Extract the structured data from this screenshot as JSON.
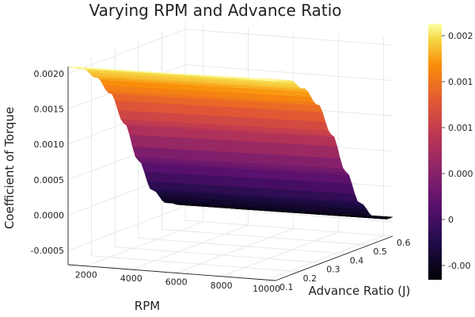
{
  "chart_data": {
    "type": "surface",
    "title": "Varying RPM and Advance Ratio",
    "xlabel": "RPM",
    "ylabel": "Advance Ratio (J)",
    "zlabel": "Coefficient of Torque",
    "x_ticks": [
      "2000",
      "4000",
      "6000",
      "8000",
      "10000"
    ],
    "y_ticks": [
      "0.1",
      "0.2",
      "0.3",
      "0.4",
      "0.5",
      "0.6"
    ],
    "z_ticks": [
      "-0.0005",
      "0.0000",
      "0.0005",
      "0.0010",
      "0.0015",
      "0.0020"
    ],
    "colorbar_ticks": [
      "0.002",
      "0.001",
      "0.001",
      "0.000",
      "0",
      "-0.00"
    ],
    "xlim": [
      1200,
      10400
    ],
    "ylim": [
      0.1,
      0.6
    ],
    "zlim": [
      -0.0007,
      0.0021
    ],
    "colormap": "inferno",
    "grid": true,
    "surface_description_series": {
      "J": [
        0.1,
        0.16,
        0.22,
        0.28,
        0.34,
        0.4,
        0.46,
        0.52,
        0.58
      ],
      "Cq_at_low_rpm": [
        0.00209,
        0.002,
        0.0018,
        0.0015,
        0.001,
        0.0004,
        -0.0001,
        -0.00035,
        -0.00045
      ],
      "Cq_at_high_rpm": [
        0.00212,
        0.00205,
        0.00186,
        0.00156,
        0.00106,
        0.00046,
        -6e-05,
        -0.00032,
        -0.00043
      ]
    }
  }
}
